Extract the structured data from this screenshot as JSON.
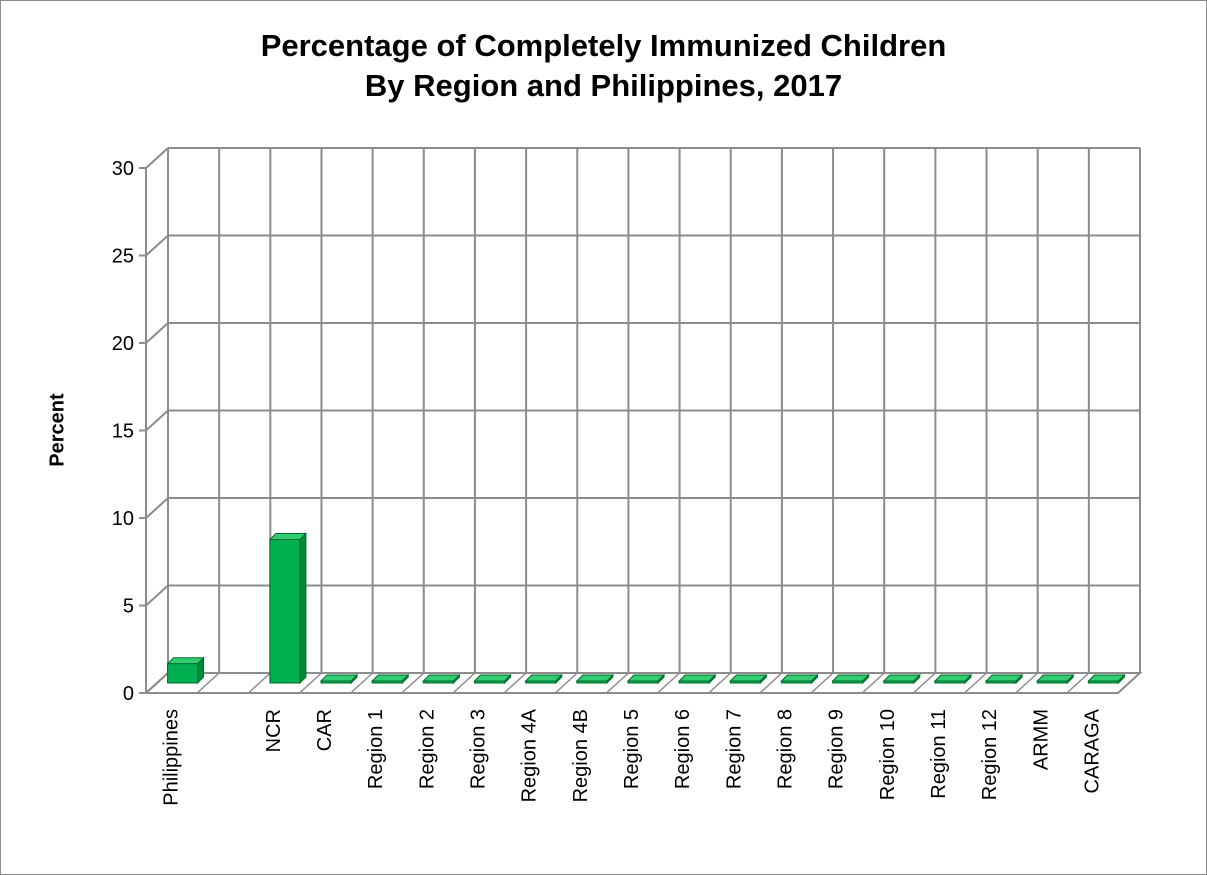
{
  "chart_data": {
    "type": "bar",
    "title": "Percentage of Completely Immunized Children",
    "subtitle": "By Region and Philippines, 2017",
    "xlabel": "",
    "ylabel": "Percent",
    "ylim": [
      0,
      30
    ],
    "yticks": [
      "0",
      "5",
      "10",
      "15",
      "20",
      "25",
      "30"
    ],
    "grid": true,
    "categories": [
      "Philippines",
      "",
      "NCR",
      "CAR",
      "Region 1",
      "Region 2",
      "Region 3",
      "Region 4A",
      "Region 4B",
      "Region 5",
      "Region 6",
      "Region 7",
      "Region 8",
      "Region 9",
      "Region 10",
      "Region 11",
      "Region 12",
      "ARMM",
      "CARAGA"
    ],
    "values": [
      1.1,
      null,
      8.2,
      0,
      0,
      0,
      0,
      0,
      0,
      0,
      0,
      0,
      0,
      0,
      0,
      0,
      0,
      0,
      0
    ],
    "colors": {
      "bar": "#00b050",
      "bar_side": "#008a3c",
      "bar_top": "#33cc70",
      "grid": "#8c8c8c"
    }
  }
}
